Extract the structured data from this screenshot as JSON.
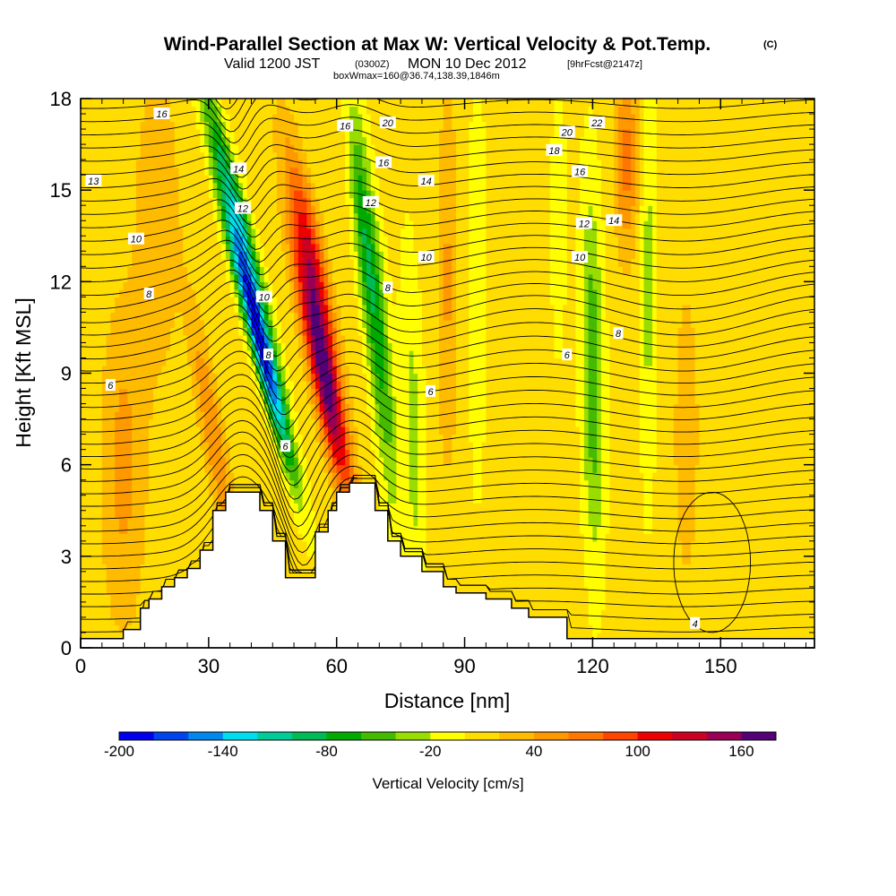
{
  "title": {
    "main": "Wind-Parallel Section at Max W: Vertical Velocity & Pot.Temp.",
    "copyright": "(C)",
    "valid_prefix": "Valid 1200 JST",
    "utc": "(0300Z)",
    "date": "MON 10 Dec 2012",
    "forecast": "[9hrFcst@2147z]",
    "box": "boxWmax=160@36.74,138.39,1846m"
  },
  "colors": {
    "background": "#ffffff",
    "terrain": "#ffffff",
    "axis": "#000000",
    "contour": "#000000"
  },
  "chart_data": {
    "type": "heatmap",
    "title": "Wind-Parallel Section at Max W: Vertical Velocity & Pot.Temp.",
    "xlabel": "Distance [nm]",
    "ylabel": "Height [Kft MSL]",
    "xlim": [
      0,
      172
    ],
    "ylim": [
      0,
      18
    ],
    "x_ticks": [
      0,
      30,
      60,
      90,
      120,
      150
    ],
    "y_ticks": [
      0,
      3,
      6,
      9,
      12,
      15,
      18
    ],
    "colorbar": {
      "title": "Vertical Velocity [cm/s]",
      "min": -200,
      "max": 170,
      "step": 20,
      "labels": [
        -200,
        -140,
        -80,
        -20,
        40,
        100,
        160
      ],
      "colors": [
        "#0000ee",
        "#0044ee",
        "#0088ee",
        "#00ddee",
        "#00cc99",
        "#00bb55",
        "#00aa00",
        "#44bb00",
        "#99dd00",
        "#ffff00",
        "#ffdd00",
        "#ffbb00",
        "#ff9900",
        "#ff7700",
        "#ff4400",
        "#ee0000",
        "#cc0022",
        "#990055",
        "#550077"
      ]
    },
    "velocity_features": [
      {
        "x": 42,
        "y": 10,
        "sx": 2.2,
        "sy": 4.0,
        "w": -185,
        "tilt": 0.9
      },
      {
        "x": 37,
        "y": 14,
        "sx": 2.5,
        "sy": 4.5,
        "w": -110,
        "tilt": 0.9
      },
      {
        "x": 57,
        "y": 9,
        "sx": 3.0,
        "sy": 4.0,
        "w": 165,
        "tilt": 0.7
      },
      {
        "x": 54,
        "y": 13,
        "sx": 3.0,
        "sy": 3.5,
        "w": 90,
        "tilt": 0.7
      },
      {
        "x": 70,
        "y": 10,
        "sx": 2.6,
        "sy": 5.5,
        "w": -70,
        "tilt": 0.3
      },
      {
        "x": 66,
        "y": 14,
        "sx": 2.2,
        "sy": 4.0,
        "w": -55,
        "tilt": 0.3
      },
      {
        "x": 78,
        "y": 7,
        "sx": 2.6,
        "sy": 6.0,
        "w": -35,
        "tilt": 0.1
      },
      {
        "x": 93,
        "y": 12,
        "sx": 2.0,
        "sy": 7.0,
        "w": -25,
        "tilt": 0.0
      },
      {
        "x": 120,
        "y": 9,
        "sx": 2.6,
        "sy": 6.0,
        "w": -65,
        "tilt": 0.05
      },
      {
        "x": 133,
        "y": 12,
        "sx": 1.8,
        "sy": 7.0,
        "w": -35,
        "tilt": 0.0
      },
      {
        "x": 112,
        "y": 14,
        "sx": 1.6,
        "sy": 4.0,
        "w": -30,
        "tilt": 0.0
      },
      {
        "x": 31,
        "y": 7,
        "sx": 2.6,
        "sy": 4.0,
        "w": 50,
        "tilt": 0.6
      },
      {
        "x": 10,
        "y": 6,
        "sx": 5.0,
        "sy": 5.0,
        "w": 40,
        "tilt": 0.0
      },
      {
        "x": 18,
        "y": 14,
        "sx": 5.0,
        "sy": 5.0,
        "w": 30,
        "tilt": 0.0
      },
      {
        "x": 86,
        "y": 12,
        "sx": 2.4,
        "sy": 6.0,
        "w": 35,
        "tilt": 0.0
      },
      {
        "x": 128,
        "y": 16,
        "sx": 2.6,
        "sy": 3.0,
        "w": 60,
        "tilt": 0.0
      },
      {
        "x": 142,
        "y": 7,
        "sx": 3.0,
        "sy": 5.0,
        "w": 25,
        "tilt": 0.0
      }
    ],
    "terrain": [
      [
        0,
        0.3
      ],
      [
        10,
        0.6
      ],
      [
        14,
        1.3
      ],
      [
        16,
        1.6
      ],
      [
        19,
        2.0
      ],
      [
        22,
        2.3
      ],
      [
        25,
        2.6
      ],
      [
        28,
        3.2
      ],
      [
        31,
        4.5
      ],
      [
        34,
        5.1
      ],
      [
        37,
        5.1
      ],
      [
        42,
        4.5
      ],
      [
        45,
        3.5
      ],
      [
        48,
        2.3
      ],
      [
        51,
        2.3
      ],
      [
        55,
        3.8
      ],
      [
        58,
        4.5
      ],
      [
        60,
        5.1
      ],
      [
        63,
        5.4
      ],
      [
        67,
        5.4
      ],
      [
        69,
        4.5
      ],
      [
        72,
        3.5
      ],
      [
        75,
        3.0
      ],
      [
        80,
        2.5
      ],
      [
        85,
        2.0
      ],
      [
        88,
        1.8
      ],
      [
        95,
        1.6
      ],
      [
        101,
        1.3
      ],
      [
        105,
        1.0
      ],
      [
        114,
        0.3
      ],
      [
        172,
        0.3
      ]
    ],
    "theta_contours": [
      {
        "level": "4",
        "label": [
          144,
          0.8
        ],
        "label_text": "4"
      },
      {
        "level": "6",
        "label": [
          7,
          8.6
        ],
        "label_text": "6"
      },
      {
        "level": "6b",
        "label": [
          48,
          6.6
        ],
        "label_text": "6"
      },
      {
        "level": "6c",
        "label": [
          82,
          8.4
        ],
        "label_text": "6"
      },
      {
        "level": "6d",
        "label": [
          114,
          9.6
        ],
        "label_text": "6"
      },
      {
        "level": "8",
        "label": [
          16,
          11.6
        ],
        "label_text": "8"
      },
      {
        "level": "8b",
        "label": [
          44,
          9.6
        ],
        "label_text": "8"
      },
      {
        "level": "8c",
        "label": [
          72,
          11.8
        ],
        "label_text": "8"
      },
      {
        "level": "8d",
        "label": [
          126,
          10.3
        ],
        "label_text": "8"
      },
      {
        "level": "10",
        "label": [
          13,
          13.4
        ],
        "label_text": "10"
      },
      {
        "level": "10b",
        "label": [
          43,
          11.5
        ],
        "label_text": "10"
      },
      {
        "level": "10c",
        "label": [
          81,
          12.8
        ],
        "label_text": "10"
      },
      {
        "level": "10d",
        "label": [
          117,
          12.8
        ],
        "label_text": "10"
      },
      {
        "level": "12",
        "label": [
          38,
          14.4
        ],
        "label_text": "12"
      },
      {
        "level": "12b",
        "label": [
          68,
          14.6
        ],
        "label_text": "12"
      },
      {
        "level": "12c",
        "label": [
          118,
          13.9
        ],
        "label_text": "12"
      },
      {
        "level": "13",
        "label": [
          3,
          15.3
        ],
        "label_text": "13"
      },
      {
        "level": "14",
        "label": [
          37,
          15.7
        ],
        "label_text": "14"
      },
      {
        "level": "14b",
        "label": [
          81,
          15.3
        ],
        "label_text": "14"
      },
      {
        "level": "14c",
        "label": [
          125,
          14.0
        ],
        "label_text": "14"
      },
      {
        "level": "16",
        "label": [
          19,
          17.5
        ],
        "label_text": "16"
      },
      {
        "level": "16b",
        "label": [
          62,
          17.1
        ],
        "label_text": "16"
      },
      {
        "level": "16c",
        "label": [
          71,
          15.9
        ],
        "label_text": "16"
      },
      {
        "level": "16d",
        "label": [
          117,
          15.6
        ],
        "label_text": "16"
      },
      {
        "level": "18",
        "label": [
          111,
          16.3
        ],
        "label_text": "18"
      },
      {
        "level": "20",
        "label": [
          72,
          17.2
        ],
        "label_text": "20"
      },
      {
        "level": "20b",
        "label": [
          114,
          16.9
        ],
        "label_text": "20"
      },
      {
        "level": "22",
        "label": [
          121,
          17.2
        ],
        "label_text": "22"
      }
    ]
  }
}
